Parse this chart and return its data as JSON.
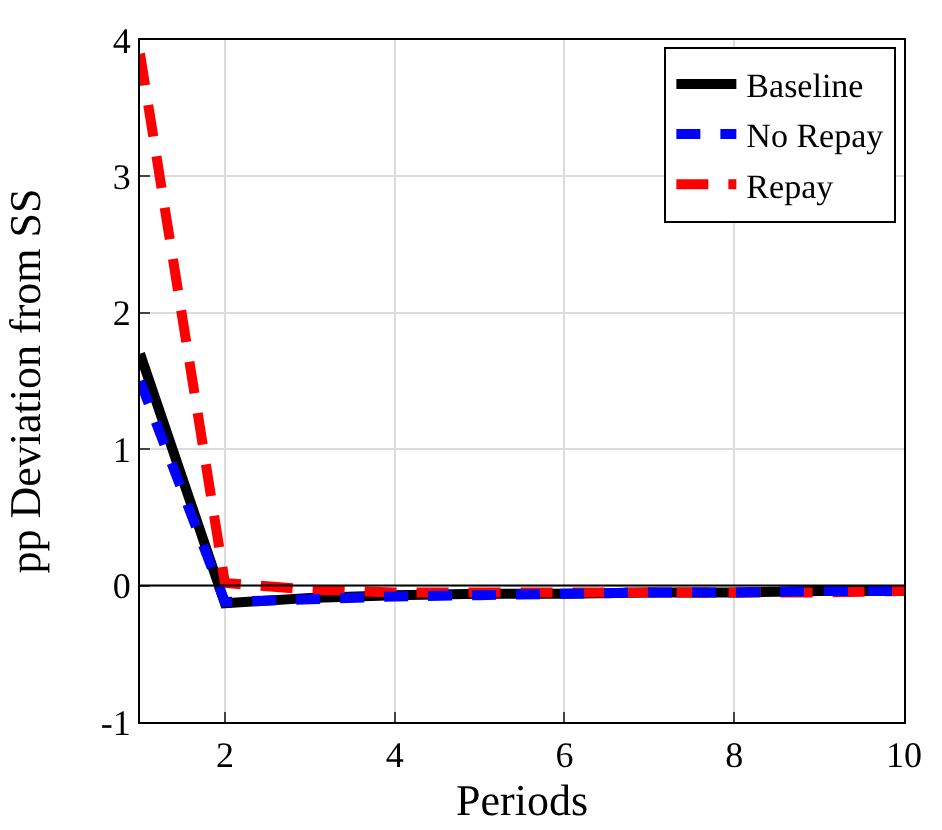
{
  "chart_data": {
    "type": "line",
    "xlabel": "Periods",
    "ylabel": "pp Deviation from SS",
    "x": [
      1,
      2,
      3,
      4,
      5,
      6,
      7,
      8,
      9,
      10
    ],
    "series": [
      {
        "name": "Baseline",
        "color": "#000000",
        "line_style": "solid",
        "values": [
          1.7,
          -0.13,
          -0.09,
          -0.07,
          -0.06,
          -0.06,
          -0.05,
          -0.05,
          -0.04,
          -0.04
        ]
      },
      {
        "name": "No Repay",
        "color": "#0000ff",
        "line_style": "dashed",
        "values": [
          1.5,
          -0.12,
          -0.1,
          -0.08,
          -0.07,
          -0.06,
          -0.05,
          -0.05,
          -0.04,
          -0.04
        ]
      },
      {
        "name": "Repay",
        "color": "#ff0000",
        "line_style": "dashed",
        "values": [
          3.9,
          0.02,
          -0.03,
          -0.05,
          -0.05,
          -0.05,
          -0.05,
          -0.05,
          -0.05,
          -0.04
        ]
      }
    ],
    "xlim": [
      1,
      10
    ],
    "xticks": [
      2,
      4,
      6,
      8,
      10
    ],
    "ylim": [
      -1,
      4
    ],
    "yticks": [
      -1,
      0,
      1,
      2,
      3,
      4
    ],
    "ref_lines": [
      {
        "axis": "y",
        "value": 0,
        "color": "#000000"
      }
    ],
    "grid": true,
    "legend": "top right",
    "marker": "none"
  }
}
